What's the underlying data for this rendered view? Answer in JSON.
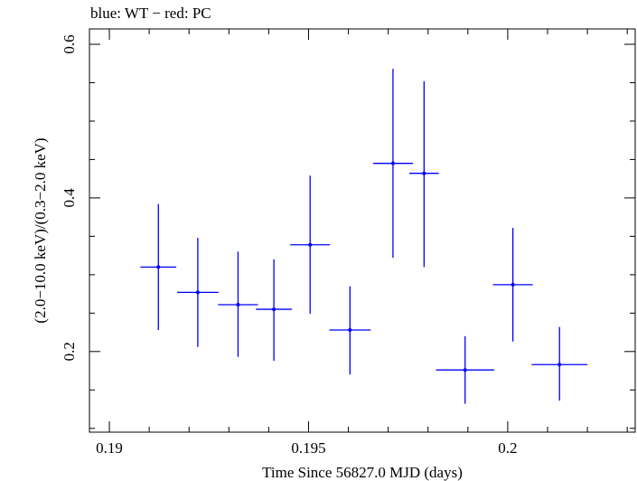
{
  "chart_data": {
    "type": "scatter",
    "title": "blue: WT − red: PC",
    "xlabel": "Time Since 56827.0 MJD (days)",
    "ylabel": "(2.0−10.0 keV)/(0.3−2.0 keV)",
    "xlim": [
      0.1895,
      0.2032
    ],
    "ylim": [
      0.095,
      0.62
    ],
    "x_ticks": [
      {
        "value": 0.19,
        "label": "0.19"
      },
      {
        "value": 0.195,
        "label": "0.195"
      },
      {
        "value": 0.2,
        "label": "0.2"
      }
    ],
    "y_ticks": [
      {
        "value": 0.2,
        "label": "0.2"
      },
      {
        "value": 0.4,
        "label": "0.4"
      },
      {
        "value": 0.6,
        "label": "0.6"
      }
    ],
    "x_minor_step": 0.001,
    "y_minor_step": 0.05,
    "grid": false,
    "series": [
      {
        "name": "WT",
        "color": "#0000ff",
        "points": [
          {
            "x": 0.19123,
            "xerr": 0.00045,
            "y": 0.31,
            "ylo": 0.228,
            "yhi": 0.392
          },
          {
            "x": 0.19222,
            "xerr": 0.00052,
            "y": 0.277,
            "ylo": 0.206,
            "yhi": 0.348
          },
          {
            "x": 0.19323,
            "xerr": 0.0005,
            "y": 0.261,
            "ylo": 0.193,
            "yhi": 0.33
          },
          {
            "x": 0.19413,
            "xerr": 0.00045,
            "y": 0.255,
            "ylo": 0.188,
            "yhi": 0.32
          },
          {
            "x": 0.19504,
            "xerr": 0.0005,
            "y": 0.339,
            "ylo": 0.249,
            "yhi": 0.429
          },
          {
            "x": 0.19604,
            "xerr": 0.00052,
            "y": 0.228,
            "ylo": 0.17,
            "yhi": 0.285
          },
          {
            "x": 0.19712,
            "xerr": 0.0005,
            "y": 0.445,
            "ylo": 0.322,
            "yhi": 0.568
          },
          {
            "x": 0.1979,
            "xerr": 0.00037,
            "y": 0.432,
            "ylo": 0.31,
            "yhi": 0.552
          },
          {
            "x": 0.19893,
            "xerr": 0.00073,
            "y": 0.176,
            "ylo": 0.132,
            "yhi": 0.22
          },
          {
            "x": 0.20013,
            "xerr": 0.0005,
            "y": 0.287,
            "ylo": 0.213,
            "yhi": 0.361
          },
          {
            "x": 0.2013,
            "xerr": 0.0007,
            "y": 0.183,
            "ylo": 0.136,
            "yhi": 0.232
          }
        ]
      }
    ]
  }
}
